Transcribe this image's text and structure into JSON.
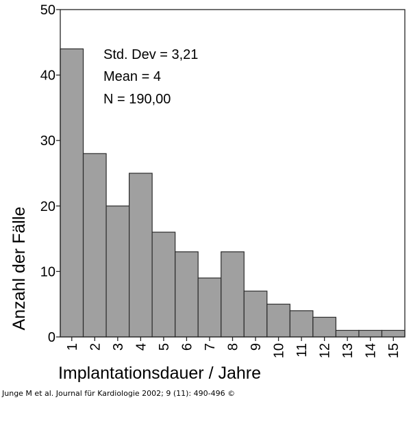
{
  "chart_data": {
    "type": "bar",
    "title": "",
    "xlabel": "Implantationsdauer / Jahre",
    "ylabel": "Anzahl der Fälle",
    "categories": [
      "1",
      "2",
      "3",
      "4",
      "5",
      "6",
      "7",
      "8",
      "9",
      "10",
      "11",
      "12",
      "13",
      "14",
      "15"
    ],
    "values": [
      44,
      28,
      20,
      25,
      16,
      13,
      9,
      13,
      7,
      5,
      4,
      3,
      1,
      1,
      1
    ],
    "ylim": [
      0,
      50
    ],
    "yticks": [
      0,
      10,
      20,
      30,
      40,
      50
    ],
    "grid": false,
    "bar_color": "#a0a0a0",
    "annotations": [
      "Std. Dev = 3,21",
      "Mean = 4",
      "N = 190,00"
    ]
  },
  "stats": {
    "std_dev": "Std. Dev = 3,21",
    "mean": "Mean = 4",
    "n": "N = 190,00"
  },
  "footer": {
    "citation": "Junge M et al. Journal für Kardiologie 2002; 9 (11): 490-496 ©"
  }
}
